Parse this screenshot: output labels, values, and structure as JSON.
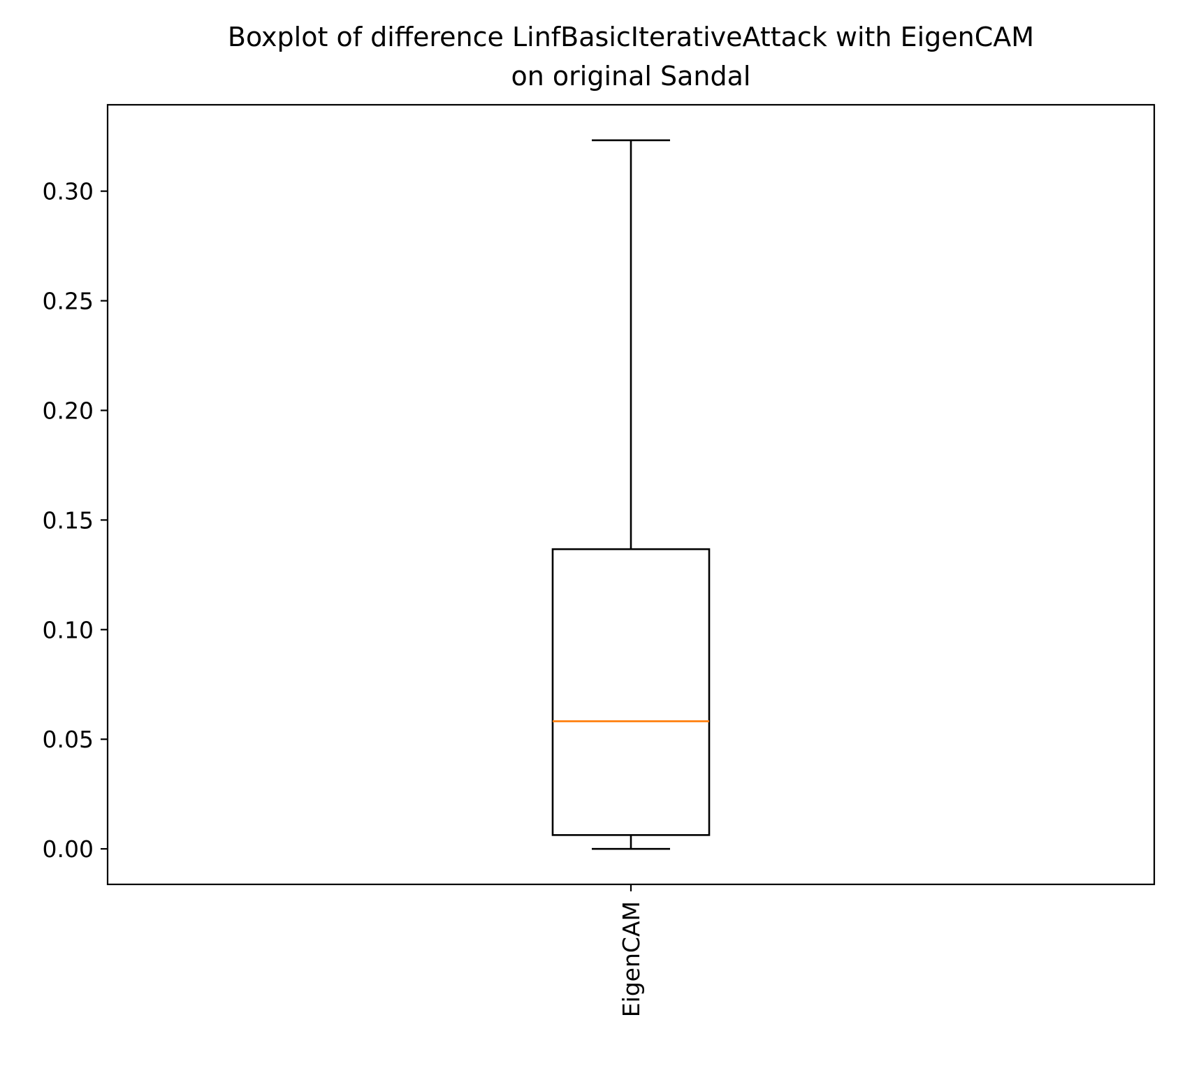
{
  "chart_data": {
    "type": "boxplot",
    "title": "Boxplot of difference LinfBasicIterativeAttack with EigenCAM\non original Sandal",
    "title_lines": [
      "Boxplot of difference LinfBasicIterativeAttack with EigenCAM",
      "on original Sandal"
    ],
    "xlabel": "",
    "ylabel": "",
    "categories": [
      "EigenCAM"
    ],
    "boxes": [
      {
        "category": "EigenCAM",
        "whisker_low": 0.0,
        "q1": 0.0063,
        "median": 0.0582,
        "q3": 0.1367,
        "whisker_high": 0.3232
      }
    ],
    "ylim": [
      -0.0162,
      0.3394
    ],
    "yticks": [
      0.0,
      0.05,
      0.1,
      0.15,
      0.2,
      0.25,
      0.3
    ],
    "ytick_labels": [
      "0.00",
      "0.05",
      "0.10",
      "0.15",
      "0.20",
      "0.25",
      "0.30"
    ],
    "xtick_rotation": 90,
    "grid": false,
    "legend": "none",
    "colors": {
      "box": "#000000",
      "median": "#ff7f0e",
      "axes": "#000000"
    }
  }
}
